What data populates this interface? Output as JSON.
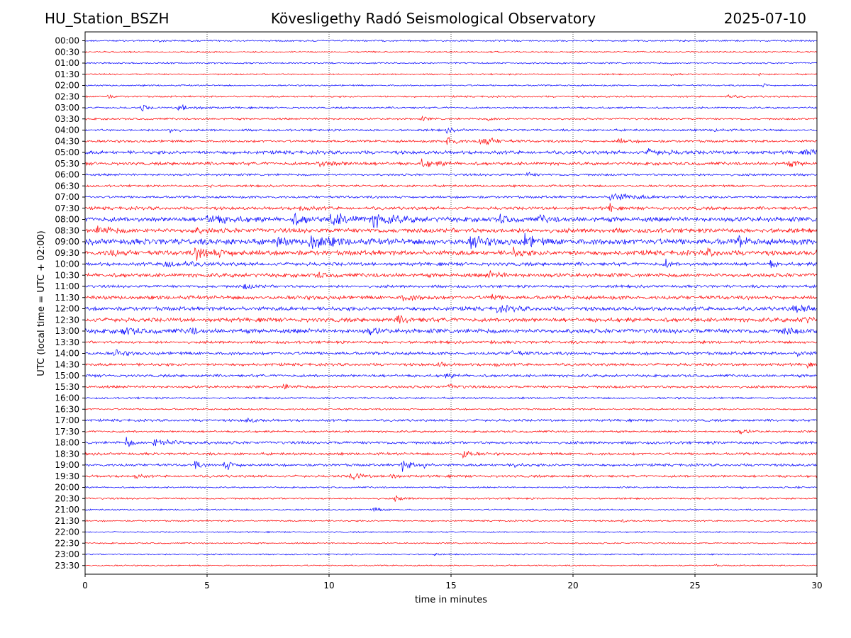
{
  "header": {
    "station": "HU_Station_BSZH",
    "observatory": "Kövesligethy Radó Seismological Observatory",
    "date": "2025-07-10"
  },
  "chart_data": {
    "type": "line",
    "title": "Kövesligethy Radó Seismological Observatory",
    "xlabel": "time in minutes",
    "ylabel": "UTC (local time = UTC + 02:00)",
    "xlim": [
      0,
      30
    ],
    "x_ticks": [
      "0",
      "5",
      "10",
      "15",
      "20",
      "25",
      "30"
    ],
    "grid": "vertical dotted at 5-minute ticks",
    "colors": {
      "even_hour_rows": "#0000ff",
      "half_hour_rows": "#ff0000"
    },
    "rows": [
      {
        "label": "00:00",
        "base": 1.0,
        "events": [
          {
            "t": 3.0,
            "a": 2.5,
            "w": 0.1
          }
        ]
      },
      {
        "label": "00:30",
        "base": 0.9,
        "events": []
      },
      {
        "label": "01:00",
        "base": 0.9,
        "events": []
      },
      {
        "label": "01:30",
        "base": 0.9,
        "events": [
          {
            "t": 24.0,
            "a": 1.5,
            "w": 0.1
          },
          {
            "t": 27.6,
            "a": 1.5,
            "w": 0.1
          }
        ]
      },
      {
        "label": "02:00",
        "base": 0.9,
        "events": [
          {
            "t": 27.8,
            "a": 3.5,
            "w": 0.1
          }
        ]
      },
      {
        "label": "02:30",
        "base": 1.0,
        "events": [
          {
            "t": 0.9,
            "a": 2.0,
            "w": 0.2
          },
          {
            "t": 26.2,
            "a": 2.0,
            "w": 0.4
          }
        ]
      },
      {
        "label": "03:00",
        "base": 1.1,
        "events": [
          {
            "t": 2.3,
            "a": 6.0,
            "w": 0.15
          },
          {
            "t": 3.8,
            "a": 3.5,
            "w": 0.6
          }
        ]
      },
      {
        "label": "03:30",
        "base": 1.1,
        "events": [
          {
            "t": 13.8,
            "a": 2.5,
            "w": 0.2
          },
          {
            "t": 16.5,
            "a": 2.0,
            "w": 0.3
          }
        ]
      },
      {
        "label": "04:00",
        "base": 1.3,
        "events": [
          {
            "t": 3.4,
            "a": 8.0,
            "w": 0.15
          },
          {
            "t": 14.8,
            "a": 2.5,
            "w": 0.3
          },
          {
            "t": 25.8,
            "a": 2.5,
            "w": 0.2
          }
        ]
      },
      {
        "label": "04:30",
        "base": 1.4,
        "events": [
          {
            "t": 14.8,
            "a": 8.0,
            "w": 0.3
          },
          {
            "t": 16.2,
            "a": 6.0,
            "w": 0.5
          },
          {
            "t": 21.8,
            "a": 3.0,
            "w": 0.4
          }
        ]
      },
      {
        "label": "05:00",
        "base": 2.0,
        "events": [
          {
            "t": 23.0,
            "a": 3.0,
            "w": 0.8
          },
          {
            "t": 29.5,
            "a": 3.5,
            "w": 0.5
          }
        ]
      },
      {
        "label": "05:30",
        "base": 1.8,
        "events": [
          {
            "t": 9.5,
            "a": 3.0,
            "w": 0.8
          },
          {
            "t": 13.8,
            "a": 4.0,
            "w": 0.6
          },
          {
            "t": 28.8,
            "a": 3.0,
            "w": 0.4
          }
        ]
      },
      {
        "label": "06:00",
        "base": 1.3,
        "events": [
          {
            "t": 18.1,
            "a": 3.0,
            "w": 0.2
          }
        ]
      },
      {
        "label": "06:30",
        "base": 1.3,
        "events": [
          {
            "t": 5.0,
            "a": 2.5,
            "w": 0.2
          }
        ]
      },
      {
        "label": "07:00",
        "base": 1.4,
        "events": [
          {
            "t": 21.5,
            "a": 6.0,
            "w": 0.8
          }
        ]
      },
      {
        "label": "07:30",
        "base": 1.8,
        "events": [
          {
            "t": 21.5,
            "a": 6.0,
            "w": 0.15
          },
          {
            "t": 8.8,
            "a": 3.0,
            "w": 0.4
          }
        ]
      },
      {
        "label": "08:00",
        "base": 2.8,
        "events": [
          {
            "t": 5.0,
            "a": 5.0,
            "w": 0.8
          },
          {
            "t": 8.5,
            "a": 6.0,
            "w": 0.5
          },
          {
            "t": 10.0,
            "a": 7.0,
            "w": 0.8
          },
          {
            "t": 11.8,
            "a": 7.0,
            "w": 0.8
          },
          {
            "t": 17.0,
            "a": 5.0,
            "w": 0.3
          },
          {
            "t": 18.6,
            "a": 4.0,
            "w": 0.3
          }
        ]
      },
      {
        "label": "08:30",
        "base": 2.6,
        "events": [
          {
            "t": 0.5,
            "a": 5.0,
            "w": 0.5
          },
          {
            "t": 4.3,
            "a": 3.0,
            "w": 0.5
          }
        ]
      },
      {
        "label": "09:00",
        "base": 3.5,
        "events": [
          {
            "t": 7.9,
            "a": 8.0,
            "w": 0.2
          },
          {
            "t": 9.2,
            "a": 10.0,
            "w": 0.6
          },
          {
            "t": 15.8,
            "a": 8.0,
            "w": 0.4
          },
          {
            "t": 18.0,
            "a": 8.0,
            "w": 0.4
          },
          {
            "t": 26.8,
            "a": 7.0,
            "w": 0.2
          }
        ]
      },
      {
        "label": "09:30",
        "base": 2.8,
        "events": [
          {
            "t": 0.9,
            "a": 5.0,
            "w": 0.3
          },
          {
            "t": 4.5,
            "a": 6.0,
            "w": 1.0
          },
          {
            "t": 17.5,
            "a": 6.0,
            "w": 0.3
          },
          {
            "t": 25.5,
            "a": 4.0,
            "w": 0.3
          }
        ]
      },
      {
        "label": "10:00",
        "base": 2.0,
        "events": [
          {
            "t": 3.2,
            "a": 4.5,
            "w": 0.8
          },
          {
            "t": 23.8,
            "a": 5.0,
            "w": 0.15
          },
          {
            "t": 28.1,
            "a": 5.0,
            "w": 0.15
          }
        ]
      },
      {
        "label": "10:30",
        "base": 2.3,
        "events": [
          {
            "t": 9.5,
            "a": 3.0,
            "w": 0.3
          },
          {
            "t": 16.5,
            "a": 3.5,
            "w": 0.5
          }
        ]
      },
      {
        "label": "11:00",
        "base": 1.6,
        "events": [
          {
            "t": 6.5,
            "a": 3.0,
            "w": 0.4
          }
        ]
      },
      {
        "label": "11:30",
        "base": 2.2,
        "events": [
          {
            "t": 13.0,
            "a": 3.5,
            "w": 0.5
          },
          {
            "t": 16.6,
            "a": 5.0,
            "w": 0.2
          }
        ]
      },
      {
        "label": "12:00",
        "base": 2.3,
        "events": [
          {
            "t": 16.8,
            "a": 3.5,
            "w": 0.6
          },
          {
            "t": 29.0,
            "a": 3.5,
            "w": 0.8
          }
        ]
      },
      {
        "label": "12:30",
        "base": 2.4,
        "events": [
          {
            "t": 12.8,
            "a": 3.5,
            "w": 0.5
          },
          {
            "t": 29.3,
            "a": 3.5,
            "w": 0.6
          }
        ]
      },
      {
        "label": "13:00",
        "base": 2.6,
        "events": [
          {
            "t": 1.5,
            "a": 4.5,
            "w": 0.5
          },
          {
            "t": 4.3,
            "a": 4.0,
            "w": 0.2
          },
          {
            "t": 11.6,
            "a": 4.0,
            "w": 0.3
          },
          {
            "t": 28.6,
            "a": 3.5,
            "w": 0.4
          }
        ]
      },
      {
        "label": "13:30",
        "base": 1.6,
        "events": [
          {
            "t": 16.5,
            "a": 3.0,
            "w": 0.2
          }
        ]
      },
      {
        "label": "14:00",
        "base": 1.8,
        "events": [
          {
            "t": 1.2,
            "a": 4.5,
            "w": 0.3
          },
          {
            "t": 17.5,
            "a": 4.0,
            "w": 0.3
          },
          {
            "t": 29.2,
            "a": 3.5,
            "w": 0.3
          }
        ]
      },
      {
        "label": "14:30",
        "base": 1.6,
        "events": [
          {
            "t": 14.5,
            "a": 4.5,
            "w": 0.15
          },
          {
            "t": 16.8,
            "a": 5.0,
            "w": 0.1
          },
          {
            "t": 29.6,
            "a": 3.5,
            "w": 0.1
          }
        ]
      },
      {
        "label": "15:00",
        "base": 1.6,
        "events": [
          {
            "t": 14.6,
            "a": 2.5,
            "w": 0.4
          }
        ]
      },
      {
        "label": "15:30",
        "base": 1.5,
        "events": [
          {
            "t": 8.1,
            "a": 3.5,
            "w": 0.3
          },
          {
            "t": 14.9,
            "a": 3.0,
            "w": 0.3
          }
        ]
      },
      {
        "label": "16:00",
        "base": 1.1,
        "events": []
      },
      {
        "label": "16:30",
        "base": 1.0,
        "events": []
      },
      {
        "label": "17:00",
        "base": 1.4,
        "events": [
          {
            "t": 6.6,
            "a": 3.0,
            "w": 0.3
          }
        ]
      },
      {
        "label": "17:30",
        "base": 1.2,
        "events": [
          {
            "t": 26.8,
            "a": 3.0,
            "w": 0.3
          }
        ]
      },
      {
        "label": "18:00",
        "base": 1.6,
        "events": [
          {
            "t": 1.7,
            "a": 10.0,
            "w": 0.15
          },
          {
            "t": 2.8,
            "a": 5.0,
            "w": 0.8
          }
        ]
      },
      {
        "label": "18:30",
        "base": 1.5,
        "events": [
          {
            "t": 15.5,
            "a": 7.0,
            "w": 0.25
          }
        ]
      },
      {
        "label": "19:00",
        "base": 1.5,
        "events": [
          {
            "t": 4.5,
            "a": 5.0,
            "w": 0.2
          },
          {
            "t": 5.7,
            "a": 7.0,
            "w": 0.3
          },
          {
            "t": 13.0,
            "a": 7.0,
            "w": 0.3
          },
          {
            "t": 13.9,
            "a": 6.0,
            "w": 0.1
          },
          {
            "t": 17.6,
            "a": 4.0,
            "w": 0.15
          }
        ]
      },
      {
        "label": "19:30",
        "base": 1.4,
        "events": [
          {
            "t": 2.0,
            "a": 4.0,
            "w": 0.2
          },
          {
            "t": 10.9,
            "a": 6.0,
            "w": 0.3
          },
          {
            "t": 12.5,
            "a": 6.0,
            "w": 0.15
          }
        ]
      },
      {
        "label": "20:00",
        "base": 0.9,
        "events": [
          {
            "t": 26.8,
            "a": 2.0,
            "w": 0.2
          },
          {
            "t": 29.2,
            "a": 2.0,
            "w": 0.1
          }
        ]
      },
      {
        "label": "20:30",
        "base": 1.0,
        "events": [
          {
            "t": 12.7,
            "a": 3.0,
            "w": 0.3
          }
        ]
      },
      {
        "label": "21:00",
        "base": 0.9,
        "events": [
          {
            "t": 11.8,
            "a": 2.5,
            "w": 0.3
          }
        ]
      },
      {
        "label": "21:30",
        "base": 0.9,
        "events": [
          {
            "t": 22.0,
            "a": 2.5,
            "w": 0.1
          }
        ]
      },
      {
        "label": "22:00",
        "base": 0.8,
        "events": []
      },
      {
        "label": "22:30",
        "base": 0.8,
        "events": []
      },
      {
        "label": "23:00",
        "base": 0.8,
        "events": [
          {
            "t": 14.3,
            "a": 1.5,
            "w": 0.1
          }
        ]
      },
      {
        "label": "23:30",
        "base": 0.8,
        "events": [
          {
            "t": 25.8,
            "a": 1.5,
            "w": 0.1
          }
        ]
      }
    ]
  }
}
